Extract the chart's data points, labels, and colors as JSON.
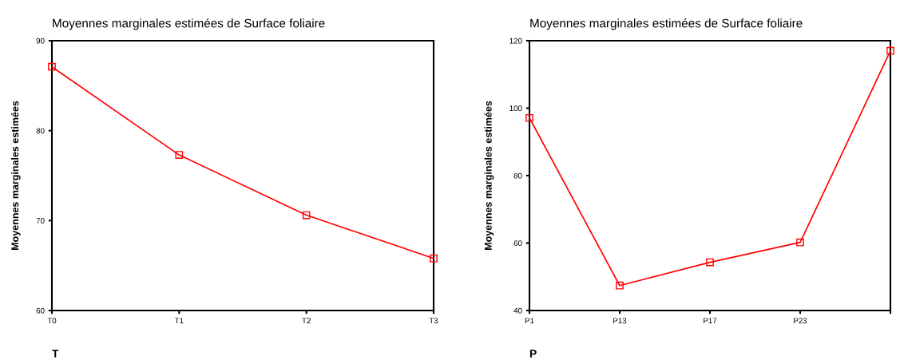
{
  "chart_data": [
    {
      "type": "line",
      "title": "Moyennes marginales estimées de Surface foliaire",
      "xlabel": "T",
      "ylabel": "Moyennes marginales estimées",
      "categories": [
        "T0",
        "T1",
        "T2",
        "T3"
      ],
      "series": [
        {
          "color": "#ff0000",
          "values": [
            87.1,
            77.3,
            70.6,
            65.8
          ]
        }
      ],
      "ylim": [
        60,
        90
      ],
      "yticks": [
        60,
        70,
        80,
        90
      ],
      "marker": "square",
      "grid": false,
      "legend": false
    },
    {
      "type": "line",
      "title": "Moyennes marginales estimées de Surface foliaire",
      "xlabel": "P",
      "ylabel": "Moyennes marginales estimées",
      "categories": [
        "P1",
        "P13",
        "P17",
        "P23",
        null
      ],
      "series": [
        {
          "color": "#ff0000",
          "values": [
            97.1,
            47.4,
            54.3,
            60.2,
            117
          ]
        }
      ],
      "ylim": [
        40,
        120
      ],
      "yticks": [
        40,
        60,
        80,
        100,
        120
      ],
      "marker": "square",
      "grid": false,
      "legend": false
    }
  ]
}
